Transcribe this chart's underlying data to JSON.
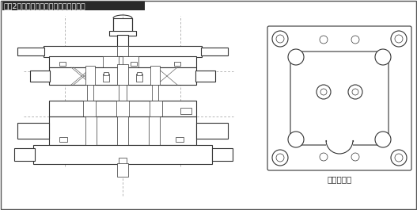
{
  "title": "『囲2』可動ストリッパ構造の穴抜き型",
  "subtitle_right": "下型平面図",
  "bg_color": "#ffffff",
  "border_color": "#555555",
  "line_color": "#333333",
  "title_bg": "#2a2a2a",
  "title_fg": "#ffffff"
}
